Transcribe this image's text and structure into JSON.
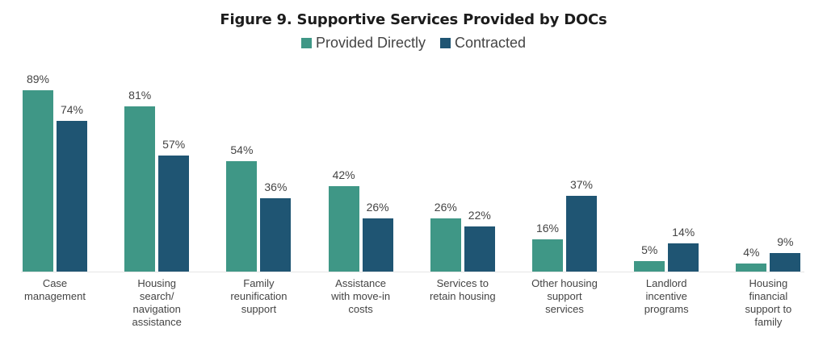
{
  "title": "Figure 9. Supportive Services Provided by DOCs",
  "legend": [
    {
      "label": "Provided Directly",
      "color": "#3f9786"
    },
    {
      "label": "Contracted",
      "color": "#1f5573"
    }
  ],
  "chart_data": {
    "type": "bar",
    "title": "Figure 9. Supportive Services Provided by DOCs",
    "xlabel": "",
    "ylabel": "",
    "ylim": [
      0,
      100
    ],
    "grid": false,
    "legend_position": "top",
    "categories": [
      "Case management",
      "Housing search/ navigation assistance",
      "Family reunification support",
      "Assistance with move-in costs",
      "Services to retain housing",
      "Other housing support services",
      "Landlord incentive programs",
      "Housing financial support to family"
    ],
    "series": [
      {
        "name": "Provided Directly",
        "color": "#3f9786",
        "values": [
          89,
          81,
          54,
          42,
          26,
          16,
          5,
          4
        ]
      },
      {
        "name": "Contracted",
        "color": "#1f5573",
        "values": [
          74,
          57,
          36,
          26,
          22,
          37,
          14,
          9
        ]
      }
    ]
  },
  "groups": [
    {
      "label": "Case\nmanagement",
      "direct": "89%",
      "contracted": "74%"
    },
    {
      "label": "Housing\nsearch/\nnavigation\nassistance",
      "direct": "81%",
      "contracted": "57%"
    },
    {
      "label": "Family\nreunification\nsupport",
      "direct": "54%",
      "contracted": "36%"
    },
    {
      "label": "Assistance\nwith move-in\ncosts",
      "direct": "42%",
      "contracted": "26%"
    },
    {
      "label": "Services to\nretain housing",
      "direct": "26%",
      "contracted": "22%"
    },
    {
      "label": "Other housing\nsupport\nservices",
      "direct": "16%",
      "contracted": "37%"
    },
    {
      "label": "Landlord\nincentive\nprograms",
      "direct": "5%",
      "contracted": "14%"
    },
    {
      "label": "Housing\nfinancial\nsupport to\nfamily",
      "direct": "4%",
      "contracted": "9%"
    }
  ]
}
